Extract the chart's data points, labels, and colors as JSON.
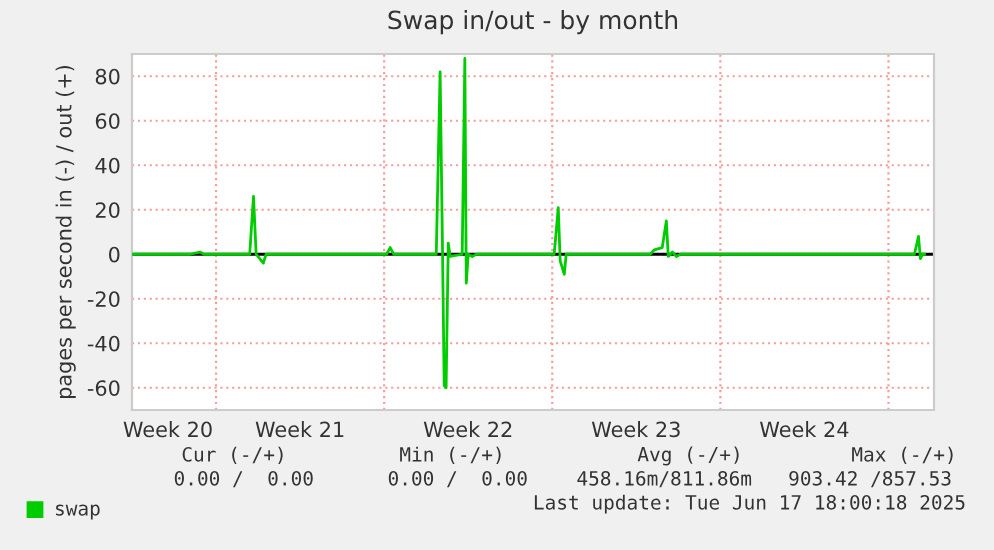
{
  "chart_data": {
    "type": "line",
    "title": "Swap in/out - by month",
    "ylabel": "pages per second in (-) / out (+)",
    "series": [
      {
        "name": "swap",
        "color": "#00cc00",
        "x": [
          "2025-05-15T12:00",
          "2025-05-17T21:36",
          "2025-05-18T07:55",
          "2025-05-18T12:00",
          "2025-05-20T09:36",
          "2025-05-20T13:26",
          "2025-05-20T16:05",
          "2025-05-20T23:17",
          "2025-05-21T01:55",
          "2025-05-26T02:24",
          "2025-05-26T06:00",
          "2025-05-26T09:36",
          "2025-05-28T04:05",
          "2025-05-28T07:55",
          "2025-05-28T10:05",
          "2025-05-28T12:00",
          "2025-05-28T13:55",
          "2025-05-28T16:05",
          "2025-05-28T18:00",
          "2025-05-29T06:00",
          "2025-05-29T08:38",
          "2025-05-29T10:05",
          "2025-05-29T12:00",
          "2025-05-29T16:05",
          "2025-05-29T19:55",
          "2025-06-02T01:55",
          "2025-06-02T06:00",
          "2025-06-02T07:55",
          "2025-06-02T12:00",
          "2025-06-02T13:55",
          "2025-06-06T01:55",
          "2025-06-06T06:00",
          "2025-06-06T13:55",
          "2025-06-06T18:00",
          "2025-06-06T19:55",
          "2025-06-07T00:00",
          "2025-06-07T04:05",
          "2025-06-07T07:55",
          "2025-06-17T01:55",
          "2025-06-17T06:00",
          "2025-06-17T07:55",
          "2025-06-17T10:05",
          "2025-06-17T12:00"
        ],
        "values": [
          0,
          0,
          1,
          0,
          0,
          26,
          0,
          -4,
          0,
          0,
          3,
          0,
          0,
          82,
          10,
          -59,
          -60,
          5,
          -1,
          0,
          88,
          -13,
          0,
          -1,
          0,
          0,
          21,
          -3,
          -9,
          0,
          0,
          2,
          3,
          15,
          -1,
          1,
          -1,
          0,
          0,
          8,
          -2,
          0,
          0
        ]
      }
    ],
    "xlim": [
      "2025-05-15T12:00",
      "2025-06-17T21:30"
    ],
    "xticks": [
      {
        "value": "2025-05-17T00:00",
        "label": "Week 20"
      },
      {
        "value": "2025-05-19",
        "label": null
      },
      {
        "value": "2025-05-22T12:00",
        "label": "Week 21"
      },
      {
        "value": "2025-05-26",
        "label": null
      },
      {
        "value": "2025-05-29T12:00",
        "label": "Week 22"
      },
      {
        "value": "2025-06-02",
        "label": null
      },
      {
        "value": "2025-06-05T12:00",
        "label": "Week 23"
      },
      {
        "value": "2025-06-09",
        "label": null
      },
      {
        "value": "2025-06-12T12:00",
        "label": "Week 24"
      },
      {
        "value": "2025-06-16",
        "label": null
      }
    ],
    "ylim": [
      -70,
      90
    ],
    "yticks": [
      -60,
      -40,
      -20,
      0,
      20,
      40,
      60,
      80
    ],
    "ref_lines": [
      {
        "axis": "y",
        "value": 0,
        "label": null,
        "color": "#000000"
      }
    ],
    "grid": true,
    "legend": "bottom",
    "line_style": "solid",
    "marker": "none",
    "annotations": [
      "Cur (-/+)",
      "Min (-/+)",
      "Avg (-/+)",
      "Max (-/+)",
      "0.00 /  0.00",
      "0.00 /  0.00",
      "458.16m/811.86m",
      "903.42 /857.53",
      "Last update: Tue Jun 17 18:00:18 2025"
    ]
  }
}
